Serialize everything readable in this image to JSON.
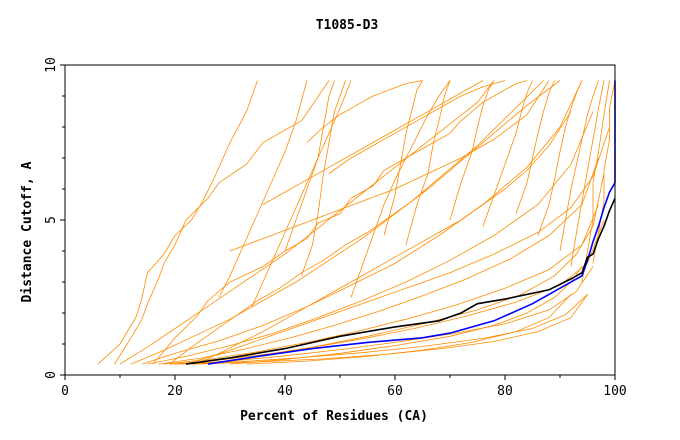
{
  "chart_data": {
    "type": "line",
    "title": "T1085-D3",
    "xlabel": "Percent of Residues (CA)",
    "ylabel": "Distance Cutoff, A",
    "xlim": [
      0,
      100
    ],
    "ylim": [
      0,
      10
    ],
    "x_ticks": [
      "0",
      "20",
      "40",
      "60",
      "80",
      "100"
    ],
    "y_ticks": [
      "0",
      "5",
      "10"
    ],
    "grid": false,
    "legend": "none",
    "colors": {
      "background_series": "#ff8c00",
      "highlight_blue": "#0000ff",
      "highlight_black": "#000000",
      "axis": "#000000"
    },
    "series": [
      {
        "color": "#0000ff",
        "x": [
          26,
          35,
          45,
          55,
          65,
          70,
          78,
          85,
          90,
          94,
          95,
          96,
          97,
          98,
          99,
          100,
          100
        ],
        "y": [
          0.35,
          0.6,
          0.85,
          1.05,
          1.2,
          1.35,
          1.75,
          2.3,
          2.8,
          3.2,
          3.7,
          4.3,
          4.8,
          5.4,
          5.9,
          6.2,
          9.5
        ]
      },
      {
        "color": "#000000",
        "x": [
          22,
          30,
          40,
          50,
          60,
          68,
          72,
          75,
          80,
          88,
          92,
          94,
          95,
          96,
          97,
          98,
          99,
          100
        ],
        "y": [
          0.35,
          0.55,
          0.85,
          1.25,
          1.55,
          1.75,
          2.0,
          2.3,
          2.45,
          2.75,
          3.1,
          3.3,
          3.8,
          3.9,
          4.4,
          4.8,
          5.3,
          5.7
        ]
      }
    ],
    "background_series": [
      {
        "x": [
          6,
          10,
          13,
          14,
          15,
          18,
          20,
          23,
          25,
          27,
          30,
          33,
          35
        ],
        "y": [
          0.35,
          1.0,
          1.9,
          2.5,
          3.3,
          3.9,
          4.5,
          5.0,
          5.6,
          6.3,
          7.5,
          8.5,
          9.5
        ]
      },
      {
        "x": [
          9,
          12,
          14,
          15,
          16,
          17,
          18,
          20,
          22,
          26,
          28,
          33,
          36,
          43,
          48
        ],
        "y": [
          0.35,
          1.2,
          1.8,
          2.3,
          2.7,
          3.1,
          3.6,
          4.2,
          5.0,
          5.7,
          6.2,
          6.8,
          7.5,
          8.2,
          9.5
        ]
      },
      {
        "x": [
          10,
          15,
          20,
          25,
          30,
          35,
          40,
          45,
          50,
          55,
          60,
          65,
          70,
          75,
          78
        ],
        "y": [
          0.35,
          0.9,
          1.5,
          2.1,
          2.7,
          3.3,
          3.9,
          4.6,
          5.3,
          6.0,
          6.7,
          7.4,
          8.1,
          8.8,
          9.5
        ]
      },
      {
        "x": [
          12,
          18,
          24,
          30,
          36,
          42,
          48,
          54,
          60,
          66,
          72,
          78,
          84,
          90
        ],
        "y": [
          0.35,
          0.8,
          1.3,
          1.8,
          2.4,
          3.0,
          3.7,
          4.4,
          5.2,
          6.0,
          6.9,
          7.8,
          8.7,
          9.5
        ]
      },
      {
        "x": [
          14,
          20,
          28,
          36,
          44,
          52,
          60,
          68,
          76,
          84,
          90,
          94
        ],
        "y": [
          0.35,
          0.7,
          1.1,
          1.6,
          2.2,
          2.9,
          3.6,
          4.5,
          5.5,
          6.7,
          8.0,
          9.5
        ]
      },
      {
        "x": [
          15,
          22,
          30,
          38,
          46,
          54,
          62,
          70,
          78,
          86,
          92,
          96
        ],
        "y": [
          0.35,
          0.6,
          0.95,
          1.35,
          1.85,
          2.4,
          3.0,
          3.7,
          4.5,
          5.5,
          6.8,
          8.5
        ]
      },
      {
        "x": [
          17,
          25,
          33,
          41,
          49,
          57,
          65,
          73,
          81,
          88,
          94,
          97
        ],
        "y": [
          0.35,
          0.55,
          0.85,
          1.2,
          1.6,
          2.05,
          2.55,
          3.1,
          3.75,
          4.5,
          5.5,
          7.0
        ]
      },
      {
        "x": [
          18,
          26,
          35,
          44,
          53,
          62,
          71,
          80,
          88,
          94,
          97
        ],
        "y": [
          0.35,
          0.5,
          0.75,
          1.05,
          1.4,
          1.8,
          2.25,
          2.8,
          3.4,
          4.2,
          5.5
        ]
      },
      {
        "x": [
          19,
          28,
          37,
          46,
          55,
          64,
          73,
          82,
          90,
          95,
          98
        ],
        "y": [
          0.35,
          0.48,
          0.68,
          0.92,
          1.2,
          1.52,
          1.9,
          2.35,
          2.9,
          3.6,
          5.0
        ]
      },
      {
        "x": [
          20,
          30,
          40,
          50,
          60,
          70,
          80,
          88,
          93,
          96
        ],
        "y": [
          0.35,
          0.45,
          0.62,
          0.82,
          1.05,
          1.32,
          1.65,
          2.1,
          2.7,
          3.5
        ]
      },
      {
        "x": [
          21,
          32,
          43,
          54,
          65,
          76,
          85,
          91,
          95
        ],
        "y": [
          0.35,
          0.43,
          0.56,
          0.72,
          0.92,
          1.18,
          1.5,
          1.95,
          2.6
        ]
      },
      {
        "x": [
          23,
          35,
          47,
          58,
          68,
          78,
          86,
          92,
          95
        ],
        "y": [
          0.35,
          0.42,
          0.52,
          0.66,
          0.84,
          1.08,
          1.4,
          1.85,
          2.6
        ]
      },
      {
        "x": [
          16,
          20,
          24,
          26,
          30,
          36,
          40,
          44,
          46,
          50,
          52,
          56,
          58,
          62,
          66,
          70,
          72,
          74,
          76,
          78,
          80,
          82,
          84
        ],
        "y": [
          0.35,
          1.2,
          1.9,
          2.4,
          3.0,
          3.5,
          4.0,
          4.4,
          4.9,
          5.2,
          5.7,
          6.1,
          6.6,
          7.0,
          7.4,
          7.8,
          8.2,
          8.5,
          8.8,
          9.0,
          9.2,
          9.4,
          9.5
        ]
      },
      {
        "x": [
          19,
          23,
          27,
          31,
          35,
          39,
          43,
          47,
          51,
          55,
          59,
          63,
          67,
          71,
          75,
          79,
          83,
          87
        ],
        "y": [
          0.35,
          0.9,
          1.4,
          1.9,
          2.4,
          2.8,
          3.3,
          3.7,
          4.2,
          4.6,
          5.1,
          5.6,
          6.2,
          6.8,
          7.4,
          8.1,
          8.8,
          9.5
        ]
      },
      {
        "x": [
          40,
          42,
          44,
          46,
          47,
          48,
          49
        ],
        "y": [
          4.0,
          5.0,
          6.0,
          7.0,
          8.0,
          9.0,
          9.5
        ]
      },
      {
        "x": [
          43,
          45,
          46,
          47,
          48,
          49,
          50,
          51
        ],
        "y": [
          3.2,
          4.2,
          5.2,
          6.5,
          7.5,
          8.5,
          9.0,
          9.5
        ]
      },
      {
        "x": [
          58,
          60,
          61,
          62,
          63,
          64,
          65
        ],
        "y": [
          4.5,
          5.8,
          6.8,
          7.8,
          8.5,
          9.2,
          9.5
        ]
      },
      {
        "x": [
          62,
          64,
          66,
          67,
          68,
          69,
          70
        ],
        "y": [
          4.2,
          5.5,
          6.5,
          7.5,
          8.2,
          9.0,
          9.5
        ]
      },
      {
        "x": [
          70,
          72,
          74,
          75,
          76,
          77,
          78
        ],
        "y": [
          5.0,
          6.2,
          7.2,
          8.0,
          8.7,
          9.2,
          9.5
        ]
      },
      {
        "x": [
          76,
          78,
          80,
          82,
          83,
          84,
          85
        ],
        "y": [
          4.8,
          5.8,
          6.8,
          7.8,
          8.5,
          9.1,
          9.5
        ]
      },
      {
        "x": [
          82,
          84,
          85,
          86,
          87,
          88,
          89
        ],
        "y": [
          5.2,
          6.2,
          7.0,
          7.8,
          8.5,
          9.1,
          9.5
        ]
      },
      {
        "x": [
          86,
          88,
          89,
          90,
          91,
          92,
          93,
          94
        ],
        "y": [
          4.5,
          5.5,
          6.3,
          7.2,
          8.0,
          8.6,
          9.1,
          9.5
        ]
      },
      {
        "x": [
          90,
          91,
          92,
          93,
          94,
          95,
          96,
          97
        ],
        "y": [
          4.0,
          5.0,
          6.0,
          6.8,
          7.6,
          8.4,
          9.0,
          9.5
        ]
      },
      {
        "x": [
          92,
          93,
          94,
          95,
          96,
          97,
          98
        ],
        "y": [
          3.5,
          4.6,
          5.6,
          6.6,
          7.6,
          8.6,
          9.5
        ]
      },
      {
        "x": [
          94,
          95,
          96,
          96,
          97,
          98,
          99
        ],
        "y": [
          3.0,
          4.0,
          5.0,
          6.2,
          7.2,
          8.4,
          9.5
        ]
      },
      {
        "x": [
          96,
          97,
          98,
          98,
          99,
          99,
          100
        ],
        "y": [
          3.6,
          4.6,
          5.6,
          6.6,
          7.6,
          8.6,
          9.5
        ]
      },
      {
        "x": [
          52,
          54,
          56,
          58,
          60,
          62,
          64,
          66,
          68,
          70
        ],
        "y": [
          2.5,
          3.5,
          4.5,
          5.5,
          6.3,
          7.0,
          7.7,
          8.4,
          9.0,
          9.5
        ]
      },
      {
        "x": [
          34,
          36,
          38,
          40,
          42,
          44,
          46,
          48,
          50,
          52
        ],
        "y": [
          2.2,
          3.0,
          3.8,
          4.6,
          5.4,
          6.2,
          7.0,
          7.8,
          8.6,
          9.5
        ]
      },
      {
        "x": [
          28,
          30,
          32,
          34,
          36,
          38,
          40,
          42,
          44
        ],
        "y": [
          2.5,
          3.2,
          4.0,
          4.8,
          5.6,
          6.4,
          7.2,
          8.2,
          9.5
        ]
      },
      {
        "x": [
          24,
          28,
          32,
          36,
          40,
          44,
          48,
          52,
          56,
          60,
          64,
          68,
          72,
          76,
          80,
          84,
          88,
          92
        ],
        "y": [
          0.35,
          0.7,
          1.05,
          1.4,
          1.8,
          2.2,
          2.6,
          3.0,
          3.4,
          3.8,
          4.2,
          4.6,
          5.0,
          5.5,
          6.0,
          6.6,
          7.4,
          8.5
        ]
      },
      {
        "x": [
          22,
          30,
          38,
          46,
          54,
          62,
          70,
          78,
          86,
          92,
          96,
          99
        ],
        "y": [
          0.35,
          0.8,
          1.3,
          1.8,
          2.3,
          2.8,
          3.3,
          3.9,
          4.6,
          5.4,
          6.4,
          8.0
        ]
      },
      {
        "x": [
          25,
          35,
          45,
          55,
          65,
          75,
          83,
          89,
          93,
          96,
          98
        ],
        "y": [
          0.35,
          0.6,
          0.9,
          1.25,
          1.65,
          2.1,
          2.6,
          3.2,
          3.9,
          4.8,
          6.5
        ]
      },
      {
        "x": [
          30,
          40,
          50,
          60,
          70,
          78,
          84,
          89,
          92,
          94
        ],
        "y": [
          0.35,
          0.5,
          0.7,
          0.95,
          1.25,
          1.6,
          2.0,
          2.5,
          3.0,
          3.5
        ]
      },
      {
        "x": [
          33,
          44,
          55,
          65,
          74,
          82,
          88,
          92
        ],
        "y": [
          0.35,
          0.45,
          0.6,
          0.8,
          1.05,
          1.4,
          1.85,
          2.6
        ]
      },
      {
        "x": [
          44,
          47,
          50,
          53,
          56,
          59,
          62,
          65
        ],
        "y": [
          7.5,
          8.0,
          8.4,
          8.7,
          9.0,
          9.2,
          9.4,
          9.5
        ]
      },
      {
        "x": [
          48,
          52,
          56,
          60,
          64,
          68,
          72,
          76,
          80
        ],
        "y": [
          6.5,
          7.0,
          7.4,
          7.8,
          8.2,
          8.6,
          9.0,
          9.3,
          9.5
        ]
      },
      {
        "x": [
          36,
          40,
          44,
          48,
          52,
          56,
          60,
          64,
          68,
          72,
          76
        ],
        "y": [
          5.5,
          5.9,
          6.3,
          6.7,
          7.1,
          7.5,
          7.9,
          8.3,
          8.7,
          9.1,
          9.5
        ]
      },
      {
        "x": [
          30,
          36,
          42,
          48,
          54,
          60,
          66,
          72,
          78,
          84,
          88
        ],
        "y": [
          4.0,
          4.4,
          4.8,
          5.2,
          5.6,
          6.0,
          6.5,
          7.0,
          7.6,
          8.4,
          9.5
        ]
      }
    ]
  }
}
